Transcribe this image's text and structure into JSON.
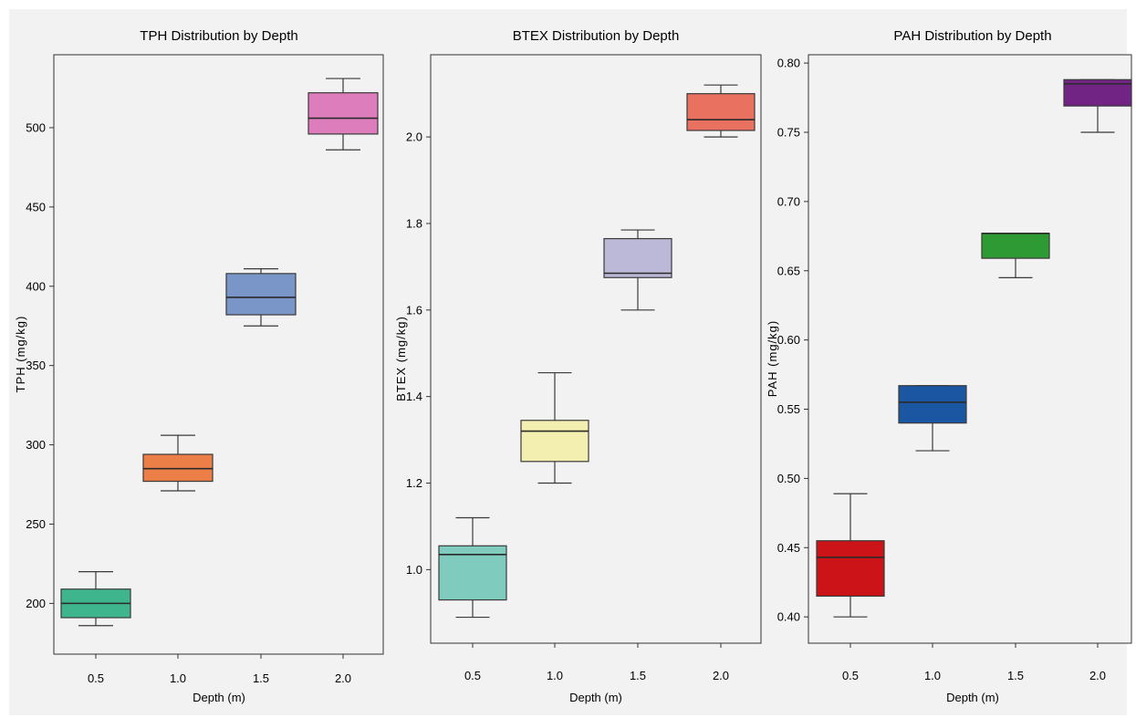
{
  "chart_data": [
    {
      "type": "box",
      "title": "TPH Distribution by Depth",
      "xlabel": "Depth (m)",
      "ylabel": "TPH (mg/kg)",
      "categories": [
        "0.5",
        "1.0",
        "1.5",
        "2.0"
      ],
      "ylim": [
        168,
        546
      ],
      "yticks": [
        200,
        250,
        300,
        350,
        400,
        450,
        500
      ],
      "ytick_labels": [
        "200",
        "250",
        "300",
        "350",
        "400",
        "450",
        "500"
      ],
      "boxes": [
        {
          "whisker_low": 186,
          "q1": 191,
          "median": 200,
          "q3": 209,
          "whisker_high": 220,
          "color": "#3fb58e"
        },
        {
          "whisker_low": 271,
          "q1": 277,
          "median": 285,
          "q3": 294,
          "whisker_high": 306,
          "color": "#ec7f48"
        },
        {
          "whisker_low": 375,
          "q1": 382,
          "median": 393,
          "q3": 408,
          "whisker_high": 411,
          "color": "#7a95c8"
        },
        {
          "whisker_low": 486,
          "q1": 496,
          "median": 506,
          "q3": 522,
          "whisker_high": 531,
          "color": "#de7dbb"
        }
      ],
      "grid": false
    },
    {
      "type": "box",
      "title": "BTEX Distribution by Depth",
      "xlabel": "Depth (m)",
      "ylabel": "BTEX (mg/kg)",
      "categories": [
        "0.5",
        "1.0",
        "1.5",
        "2.0"
      ],
      "ylim": [
        0.83,
        2.19
      ],
      "yticks": [
        1.0,
        1.2,
        1.4,
        1.6,
        1.8,
        2.0
      ],
      "ytick_labels": [
        "1.0",
        "1.2",
        "1.4",
        "1.6",
        "1.8",
        "2.0"
      ],
      "boxes": [
        {
          "whisker_low": 0.89,
          "q1": 0.93,
          "median": 1.035,
          "q3": 1.055,
          "whisker_high": 1.12,
          "color": "#7fcbbd"
        },
        {
          "whisker_low": 1.2,
          "q1": 1.25,
          "median": 1.32,
          "q3": 1.345,
          "whisker_high": 1.455,
          "color": "#f2efb0"
        },
        {
          "whisker_low": 1.6,
          "q1": 1.675,
          "median": 1.685,
          "q3": 1.765,
          "whisker_high": 1.785,
          "color": "#bcb8d8"
        },
        {
          "whisker_low": 2.0,
          "q1": 2.015,
          "median": 2.04,
          "q3": 2.1,
          "whisker_high": 2.12,
          "color": "#e8725f"
        }
      ],
      "grid": false
    },
    {
      "type": "box",
      "title": "PAH Distribution by Depth",
      "xlabel": "Depth (m)",
      "ylabel": "PAH (mg/kg)",
      "categories": [
        "0.5",
        "1.0",
        "1.5",
        "2.0"
      ],
      "ylim": [
        0.381,
        0.806
      ],
      "yticks": [
        0.4,
        0.45,
        0.5,
        0.55,
        0.6,
        0.65,
        0.7,
        0.75,
        0.8
      ],
      "ytick_labels": [
        "0.40",
        "0.45",
        "0.50",
        "0.55",
        "0.60",
        "0.65",
        "0.70",
        "0.75",
        "0.80"
      ],
      "boxes": [
        {
          "whisker_low": 0.4,
          "q1": 0.415,
          "median": 0.443,
          "q3": 0.455,
          "whisker_high": 0.489,
          "color": "#cc1418"
        },
        {
          "whisker_low": 0.52,
          "q1": 0.54,
          "median": 0.555,
          "q3": 0.567,
          "whisker_high": 0.567,
          "color": "#1b56a3"
        },
        {
          "whisker_low": 0.645,
          "q1": 0.659,
          "median": 0.677,
          "q3": 0.677,
          "whisker_high": 0.677,
          "color": "#2e9a33"
        },
        {
          "whisker_low": 0.75,
          "q1": 0.769,
          "median": 0.785,
          "q3": 0.788,
          "whisker_high": 0.788,
          "color": "#722485"
        }
      ],
      "grid": false
    }
  ]
}
